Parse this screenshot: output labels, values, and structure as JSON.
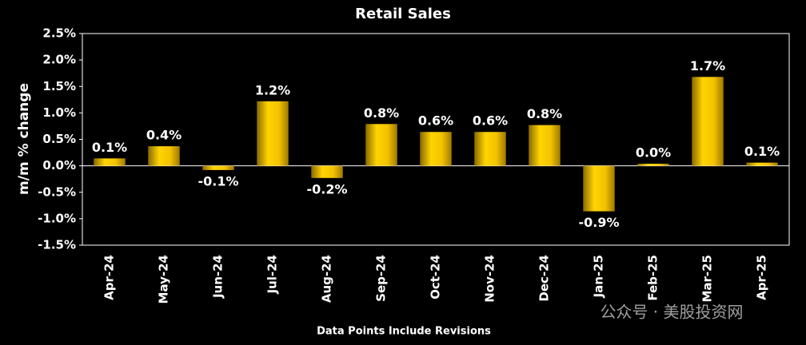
{
  "chart_data": {
    "type": "bar",
    "title": "Retail Sales",
    "y_label": "m/m % change",
    "footnote": "Data Points Include Revisions",
    "watermark": "公众号 · 美股投资网",
    "categories": [
      "Apr-24",
      "May-24",
      "Jun-24",
      "Jul-24",
      "Aug-24",
      "Sep-24",
      "Oct-24",
      "Nov-24",
      "Dec-24",
      "Jan-25",
      "Feb-25",
      "Mar-25",
      "Apr-25"
    ],
    "values": [
      0.14,
      0.37,
      -0.08,
      1.22,
      -0.23,
      0.79,
      0.64,
      0.64,
      0.77,
      -0.86,
      0.04,
      1.68,
      0.06
    ],
    "value_labels": [
      "0.1%",
      "0.4%",
      "-0.1%",
      "1.2%",
      "-0.2%",
      "0.8%",
      "0.6%",
      "0.6%",
      "0.8%",
      "-0.9%",
      "0.0%",
      "1.7%",
      "0.1%"
    ],
    "color": "#f2c200",
    "ylim": [
      -1.5,
      2.5
    ],
    "yticks": [
      {
        "value": -1.5,
        "label": "-1.5%"
      },
      {
        "value": -1.0,
        "label": "-1.0%"
      },
      {
        "value": -0.5,
        "label": "-0.5%"
      },
      {
        "value": 0,
        "label": "0.0%"
      },
      {
        "value": 0.5,
        "label": "0.5%"
      },
      {
        "value": 1.0,
        "label": "1.0%"
      },
      {
        "value": 1.5,
        "label": "1.5%"
      },
      {
        "value": 2.0,
        "label": "2.0%"
      },
      {
        "value": 2.5,
        "label": "2.5%"
      }
    ],
    "grid": false
  }
}
